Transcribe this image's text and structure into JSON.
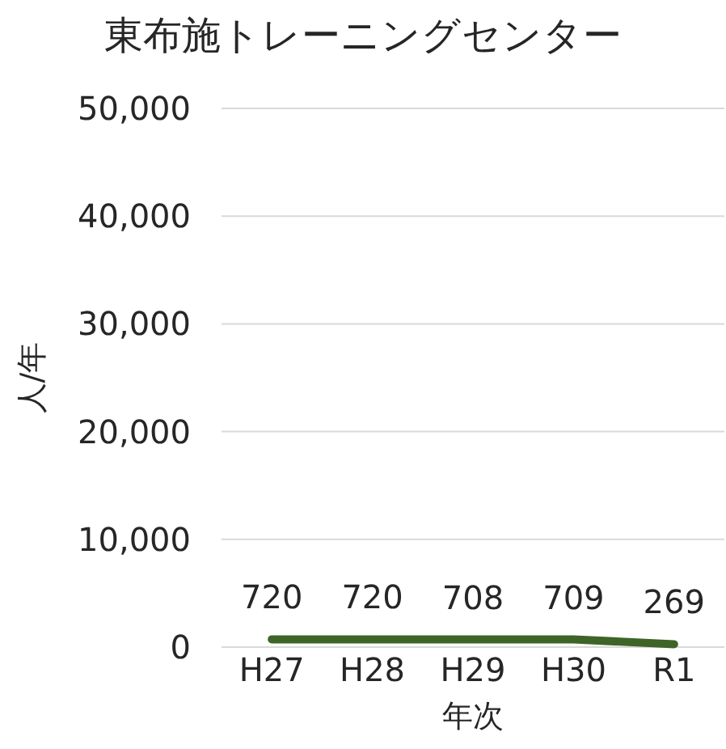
{
  "chart_data": {
    "type": "line",
    "title": "東布施トレーニングセンター",
    "xlabel": "年次",
    "ylabel": "人/年",
    "categories": [
      "H27",
      "H28",
      "H29",
      "H30",
      "R1"
    ],
    "series": [
      {
        "color": "#3e6428",
        "values": [
          720,
          720,
          708,
          709,
          269
        ]
      }
    ],
    "ylim": [
      0,
      50000
    ],
    "yticks": [
      0,
      {
        "value": 10000,
        "label": "10,000"
      },
      {
        "value": 20000,
        "label": "20,000"
      },
      {
        "value": 30000,
        "label": "30,000"
      },
      {
        "value": 40000,
        "label": "40,000"
      },
      {
        "value": 50000,
        "label": "50,000"
      }
    ],
    "grid": "y",
    "data_labels": true
  }
}
